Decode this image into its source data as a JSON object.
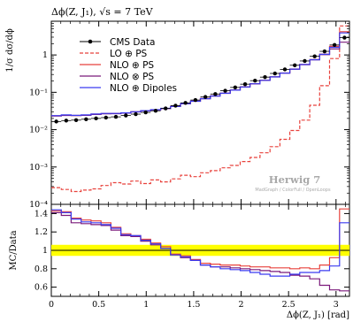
{
  "chart_data": {
    "type": "line",
    "title": "Δϕ(Z, J₁), √s = 7 TeV",
    "top_panel": {
      "ylabel": "1/σ dσ/dϕ",
      "yscale": "log",
      "ylim": [
        0.0001,
        8
      ],
      "yticks": [
        0.0001,
        0.001,
        0.01,
        0.1,
        1
      ],
      "ytick_labels": [
        "10⁻⁴",
        "10⁻³",
        "10⁻²",
        "10⁻¹",
        "1"
      ]
    },
    "ratio_panel": {
      "ylabel": "MC/Data",
      "ylim": [
        0.5,
        1.5
      ],
      "yticks": [
        0.6,
        0.8,
        1.0,
        1.2,
        1.4
      ],
      "ytick_labels": [
        "0.6",
        "0.8",
        "1",
        "1.2",
        "1.4"
      ]
    },
    "xlabel": "Δϕ(Z, J₁) [rad]",
    "xlim": [
      0,
      3.1416
    ],
    "xticks": [
      0,
      0.5,
      1,
      1.5,
      2,
      2.5,
      3
    ],
    "xtick_labels": [
      "0",
      "0.5",
      "1",
      "1.5",
      "2",
      "2.5",
      "3"
    ],
    "legend_position": "top-left",
    "watermark": {
      "line1": "Herwig 7",
      "line2": "MadGraph / ColorFull / OpenLoops"
    },
    "bin_edges": [
      0,
      0.105,
      0.209,
      0.314,
      0.419,
      0.524,
      0.628,
      0.733,
      0.838,
      0.942,
      1.047,
      1.152,
      1.257,
      1.361,
      1.466,
      1.571,
      1.676,
      1.78,
      1.885,
      1.99,
      2.094,
      2.199,
      2.304,
      2.409,
      2.513,
      2.618,
      2.723,
      2.827,
      2.932,
      3.037,
      3.142
    ],
    "series": [
      {
        "name": "CMS Data",
        "color": "#000000",
        "style": "points",
        "values": [
          0.0165,
          0.0175,
          0.018,
          0.019,
          0.02,
          0.021,
          0.022,
          0.024,
          0.026,
          0.029,
          0.032,
          0.037,
          0.044,
          0.052,
          0.062,
          0.075,
          0.09,
          0.11,
          0.135,
          0.165,
          0.205,
          0.255,
          0.32,
          0.41,
          0.53,
          0.69,
          0.92,
          1.25,
          1.85,
          2.9
        ]
      },
      {
        "name": "LO ⊕ PS",
        "color": "#e8423c",
        "style": "dashed",
        "values": [
          0.00028,
          0.00025,
          0.00022,
          0.00024,
          0.00026,
          0.00032,
          0.00038,
          0.00035,
          0.00042,
          0.00036,
          0.00045,
          0.0004,
          0.00048,
          0.0006,
          0.00055,
          0.0007,
          0.0008,
          0.00095,
          0.0011,
          0.0014,
          0.0018,
          0.0024,
          0.0035,
          0.0055,
          0.0095,
          0.018,
          0.045,
          0.15,
          0.8,
          6.0
        ]
      },
      {
        "name": "NLO ⊕ PS",
        "color": "#e8423c",
        "style": "solid",
        "values": [
          0.0235,
          0.0245,
          0.024,
          0.0245,
          0.026,
          0.027,
          0.027,
          0.028,
          0.03,
          0.032,
          0.034,
          0.037,
          0.042,
          0.05,
          0.058,
          0.068,
          0.08,
          0.095,
          0.115,
          0.14,
          0.17,
          0.21,
          0.26,
          0.33,
          0.42,
          0.56,
          0.75,
          1.05,
          1.7,
          4.2
        ]
      },
      {
        "name": "NLO ⊗ PS",
        "color": "#7b1a7b",
        "style": "solid",
        "values": [
          0.0232,
          0.024,
          0.0238,
          0.0242,
          0.0255,
          0.0265,
          0.0268,
          0.0278,
          0.0298,
          0.0318,
          0.0338,
          0.0368,
          0.0418,
          0.0495,
          0.0575,
          0.0675,
          0.0795,
          0.094,
          0.114,
          0.138,
          0.168,
          0.208,
          0.258,
          0.325,
          0.415,
          0.55,
          0.74,
          1.02,
          1.45,
          2.2
        ]
      },
      {
        "name": "NLO ⊕ Dipoles",
        "color": "#3b3bf0",
        "style": "solid",
        "values": [
          0.0238,
          0.0248,
          0.0242,
          0.0248,
          0.0262,
          0.0272,
          0.0272,
          0.0282,
          0.0302,
          0.0322,
          0.0342,
          0.0372,
          0.042,
          0.0498,
          0.0578,
          0.0678,
          0.0798,
          0.0945,
          0.1145,
          0.139,
          0.169,
          0.209,
          0.259,
          0.328,
          0.418,
          0.555,
          0.745,
          1.04,
          1.6,
          3.9
        ]
      }
    ],
    "ratio_band": {
      "color": "#ffff00",
      "upper": 1.06,
      "lower": 0.94
    },
    "ratio_series": [
      {
        "name": "NLO ⊕ PS",
        "color": "#e8423c",
        "values": [
          1.43,
          1.42,
          1.35,
          1.33,
          1.32,
          1.3,
          1.25,
          1.18,
          1.16,
          1.12,
          1.08,
          1.04,
          0.96,
          0.94,
          0.9,
          0.86,
          0.85,
          0.84,
          0.84,
          0.83,
          0.82,
          0.82,
          0.81,
          0.81,
          0.8,
          0.81,
          0.8,
          0.84,
          0.92,
          1.45
        ]
      },
      {
        "name": "NLO ⊗ PS",
        "color": "#7b1a7b",
        "values": [
          1.41,
          1.38,
          1.3,
          1.29,
          1.28,
          1.27,
          1.22,
          1.16,
          1.15,
          1.1,
          1.06,
          1.02,
          0.95,
          0.92,
          0.89,
          0.84,
          0.82,
          0.82,
          0.81,
          0.8,
          0.79,
          0.78,
          0.77,
          0.76,
          0.73,
          0.72,
          0.69,
          0.62,
          0.57,
          0.56
        ]
      },
      {
        "name": "NLO ⊕ Dipoles",
        "color": "#3b3bf0",
        "values": [
          1.44,
          1.41,
          1.34,
          1.31,
          1.3,
          1.28,
          1.24,
          1.17,
          1.16,
          1.11,
          1.07,
          1.02,
          0.95,
          0.93,
          0.89,
          0.84,
          0.82,
          0.8,
          0.79,
          0.78,
          0.76,
          0.74,
          0.72,
          0.72,
          0.74,
          0.76,
          0.76,
          0.78,
          0.83,
          1.3
        ]
      }
    ]
  }
}
